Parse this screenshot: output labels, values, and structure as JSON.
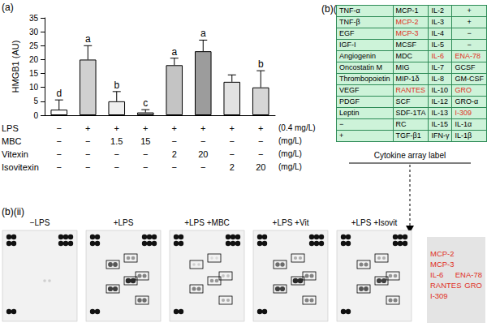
{
  "panels": [
    "(a)",
    "(b)(i)",
    "(b)(ii)"
  ],
  "chart_data": {
    "type": "bar",
    "y_label": "HMGB1 (AU)",
    "treatments": [
      {
        "name": "LPS",
        "values": [
          "−",
          "+",
          "+",
          "+",
          "+",
          "+",
          "+",
          "+"
        ],
        "unit": "(0.4 mg/L)"
      },
      {
        "name": "MBC",
        "values": [
          "−",
          "−",
          "1.5",
          "15",
          "−",
          "−",
          "−",
          "−"
        ],
        "unit": "(mg/L)"
      },
      {
        "name": "Vitexin",
        "values": [
          "−",
          "−",
          "−",
          "−",
          "2",
          "20",
          "−",
          "−"
        ],
        "unit": "(mg/L)"
      },
      {
        "name": "Isovitexin",
        "values": [
          "−",
          "−",
          "−",
          "−",
          "−",
          "−",
          "2",
          "20"
        ],
        "unit": "(mg/L)"
      }
    ],
    "values": [
      2,
      20,
      5,
      1,
      18,
      23,
      12,
      10
    ],
    "errors": [
      3.5,
      5,
      3.5,
      1,
      2.5,
      4,
      2.5,
      6
    ],
    "letters": [
      "d",
      "a",
      "b",
      "c",
      "a",
      "a",
      null,
      "b"
    ],
    "colors": [
      "#ffffff",
      "#d0d0d0",
      "#eeeeee",
      "#a8a8a8",
      "#c4c4c4",
      "#9c9c9c",
      "#e2e2e2",
      "#d6d6d6"
    ],
    "ylim": [
      0,
      35
    ],
    "yticks": [
      0,
      5,
      10,
      15,
      20,
      25,
      30,
      35
    ],
    "grid": false
  },
  "cytokine_table": {
    "rows": [
      [
        "TNF-α",
        "MCP-1",
        "IL-2",
        "+"
      ],
      [
        "TNF-β",
        "MCP-2",
        "IL-3",
        "+"
      ],
      [
        "EGF",
        "MCP-3",
        "IL-4",
        "−"
      ],
      [
        "IGF-I",
        "MCSF",
        "IL-5",
        "−"
      ],
      [
        "Angiogenin",
        "MDC",
        "IL-6",
        "ENA-78"
      ],
      [
        "Oncostatin M",
        "MIG",
        "IL-7",
        "GCSF"
      ],
      [
        "Thrombopoietin",
        "MIP-1δ",
        "IL-8",
        "GM-CSF"
      ],
      [
        "VEGF",
        "RANTES",
        "IL-10",
        "GRO"
      ],
      [
        "PDGF",
        "SCF",
        "IL-12",
        "GRO-α"
      ],
      [
        "Leptin",
        "SDF-1TA",
        "IL-13",
        "I-309"
      ],
      [
        "−",
        "RC",
        "IL-15",
        "IL-1α"
      ],
      [
        "+",
        "TGF-β1",
        "IFN-γ",
        "IL-1β"
      ]
    ],
    "highlighted": [
      "MCP-2",
      "MCP-3",
      "IL-6",
      "ENA-78",
      "RANTES",
      "GRO",
      "I-309"
    ],
    "caption": "Cytokine array label"
  },
  "blots": {
    "titles": [
      "−LPS",
      "+LPS",
      "+LPS +MBC",
      "+LPS +Vit",
      "+LPS +Isovit"
    ]
  },
  "callout": [
    [
      "MCP-2"
    ],
    [
      "MCP-3"
    ],
    [
      "IL-6",
      "ENA-78"
    ],
    [
      "RANTES",
      "GRO"
    ],
    [
      "I-309"
    ]
  ]
}
